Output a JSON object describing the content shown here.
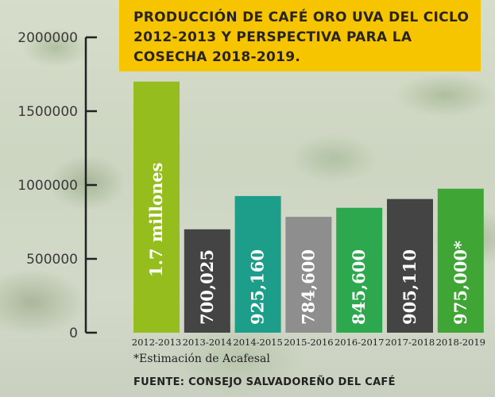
{
  "chart_data": {
    "type": "bar",
    "title": "PRODUCCIÓN DE CAFÉ ORO UVA DEL CICLO 2012-2013 Y PERSPECTIVA PARA LA COSECHA 2018-2019.",
    "categories": [
      "2012-2013",
      "2013-2014",
      "2014-2015",
      "2015-2016",
      "2016-2017",
      "2017-2018",
      "2018-2019"
    ],
    "values": [
      1700000,
      700025,
      925160,
      784600,
      845600,
      905110,
      975000
    ],
    "data_labels": [
      "1.7 millones",
      "700,025",
      "925,160",
      "784,600",
      "845,600",
      "905,110",
      "975,000*"
    ],
    "colors": [
      "#94bd1d",
      "#444444",
      "#1c9e8a",
      "#8e8e8e",
      "#2ea84e",
      "#444444",
      "#3fa535"
    ],
    "yticks": [
      "0",
      "500000",
      "1000000",
      "1500000",
      "2000000"
    ],
    "ylim": [
      0,
      2000000
    ],
    "xlabel": "",
    "ylabel": "",
    "grid": false,
    "legend": "none"
  },
  "note": "*Estimación de Acafesal",
  "source": "FUENTE: CONSEJO SALVADOREÑO DEL CAFÉ",
  "colors": {
    "title_background": "#f6c500",
    "axis": "#222222"
  }
}
